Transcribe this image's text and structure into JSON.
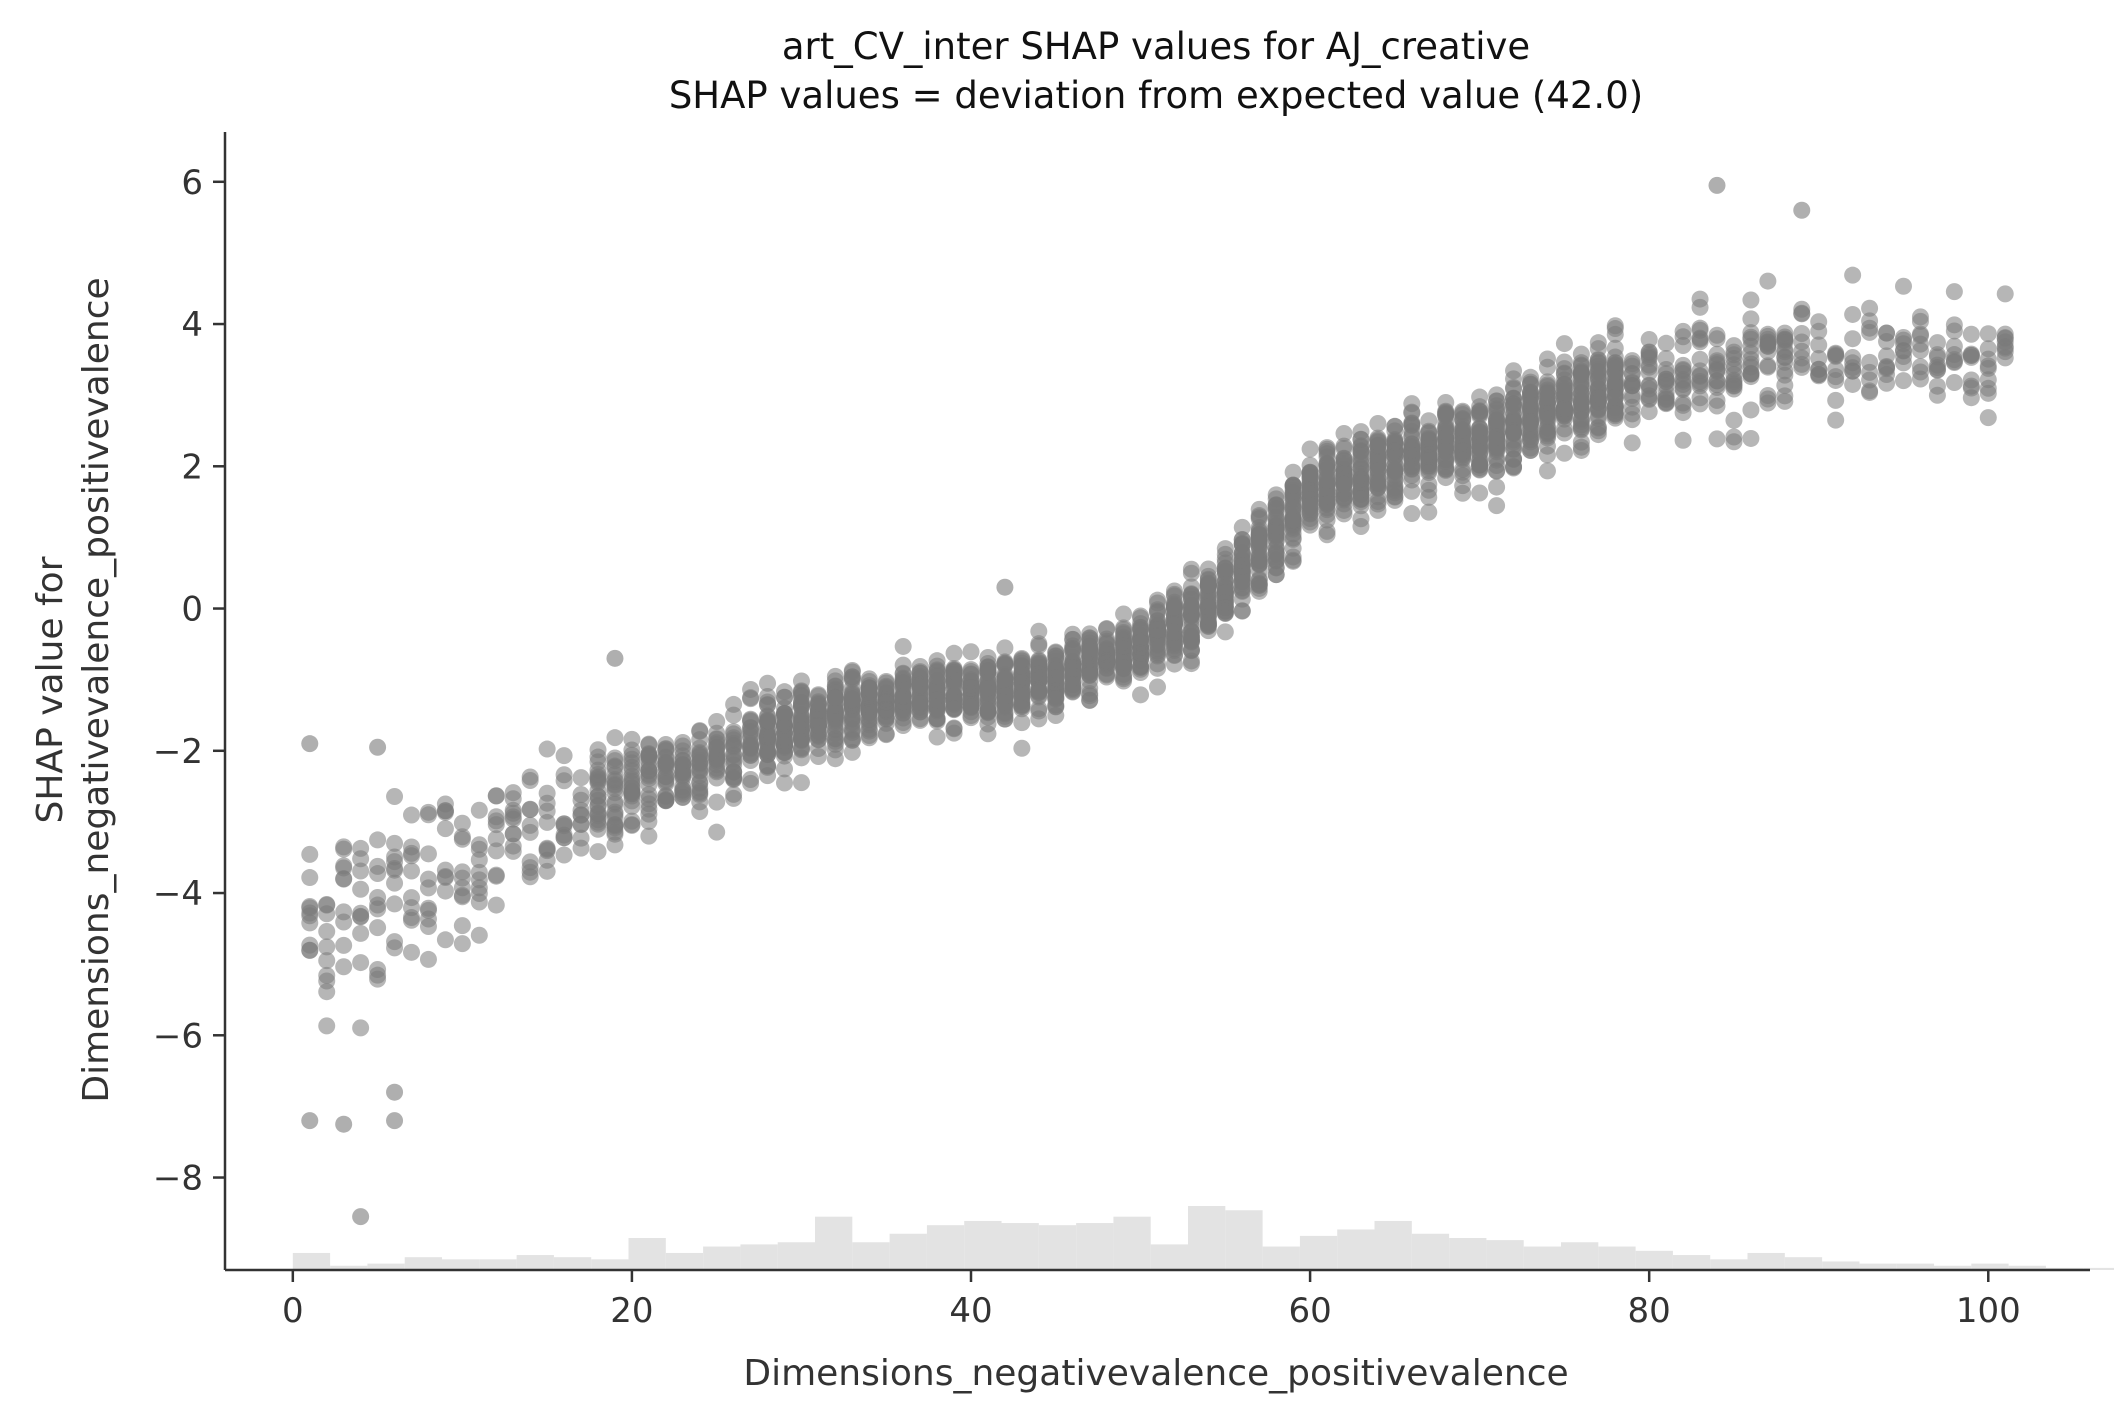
{
  "chart_data": {
    "type": "scatter",
    "title": "art_CV_inter SHAP values for AJ_creative",
    "subtitle": "SHAP values = deviation from expected value (42.0)",
    "xlabel": "Dimensions_negativevalence_positivevalence",
    "ylabel_line1": "SHAP value for",
    "ylabel_line2": "Dimensions_negativevalence_positivevalence",
    "xlim": [
      -4,
      106
    ],
    "ylim": [
      -9.3,
      6.7
    ],
    "xticks": [
      0,
      20,
      40,
      60,
      80,
      100
    ],
    "xtick_labels": [
      "0",
      "20",
      "40",
      "60",
      "80",
      "100"
    ],
    "yticks": [
      6,
      4,
      2,
      0,
      -2,
      -4,
      -6,
      -8
    ],
    "ytick_labels": [
      "6",
      "4",
      "2",
      "0",
      "−2",
      "−4",
      "−6",
      "−8"
    ],
    "grid": false,
    "legend": "none",
    "point_color": "#7a7a7a",
    "hist_color": "#e3e3e3",
    "axis_color": "#333333",
    "trend": [
      {
        "x": 1,
        "y": -4.5,
        "spread": 1.5
      },
      {
        "x": 5,
        "y": -4.0,
        "spread": 1.3
      },
      {
        "x": 10,
        "y": -3.6,
        "spread": 1.1
      },
      {
        "x": 15,
        "y": -3.1,
        "spread": 0.9
      },
      {
        "x": 20,
        "y": -2.5,
        "spread": 0.7
      },
      {
        "x": 25,
        "y": -2.1,
        "spread": 0.6
      },
      {
        "x": 30,
        "y": -1.6,
        "spread": 0.5
      },
      {
        "x": 35,
        "y": -1.3,
        "spread": 0.45
      },
      {
        "x": 40,
        "y": -1.15,
        "spread": 0.45
      },
      {
        "x": 45,
        "y": -1.0,
        "spread": 0.45
      },
      {
        "x": 50,
        "y": -0.5,
        "spread": 0.5
      },
      {
        "x": 55,
        "y": 0.2,
        "spread": 0.55
      },
      {
        "x": 60,
        "y": 1.6,
        "spread": 0.6
      },
      {
        "x": 65,
        "y": 2.1,
        "spread": 0.55
      },
      {
        "x": 70,
        "y": 2.4,
        "spread": 0.55
      },
      {
        "x": 75,
        "y": 2.9,
        "spread": 0.6
      },
      {
        "x": 80,
        "y": 3.2,
        "spread": 0.7
      },
      {
        "x": 85,
        "y": 3.4,
        "spread": 0.8
      },
      {
        "x": 90,
        "y": 3.5,
        "spread": 0.8
      },
      {
        "x": 95,
        "y": 3.5,
        "spread": 0.8
      },
      {
        "x": 101,
        "y": 3.6,
        "spread": 0.8
      }
    ],
    "outliers": [
      {
        "x": 4,
        "y": -8.55
      },
      {
        "x": 84,
        "y": 5.95
      },
      {
        "x": 89,
        "y": 5.6
      },
      {
        "x": 1,
        "y": -7.2
      },
      {
        "x": 3,
        "y": -7.25
      },
      {
        "x": 6,
        "y": -7.2
      },
      {
        "x": 6,
        "y": -6.8
      },
      {
        "x": 1,
        "y": -1.9
      },
      {
        "x": 5,
        "y": -1.95
      },
      {
        "x": 42,
        "y": 0.3
      },
      {
        "x": 19,
        "y": -0.7
      }
    ],
    "histogram": {
      "bin_start": 0,
      "bin_width": 2.2,
      "counts": [
        8,
        2,
        3,
        6,
        5,
        5,
        7,
        6,
        5,
        15,
        8,
        11,
        12,
        13,
        25,
        13,
        17,
        21,
        23,
        22,
        21,
        22,
        25,
        12,
        30,
        28,
        11,
        16,
        19,
        23,
        17,
        15,
        14,
        11,
        13,
        11,
        9,
        7,
        5,
        8,
        6,
        4,
        3,
        3,
        2,
        3,
        2,
        1,
        1,
        0,
        1,
        0,
        0
      ]
    }
  }
}
